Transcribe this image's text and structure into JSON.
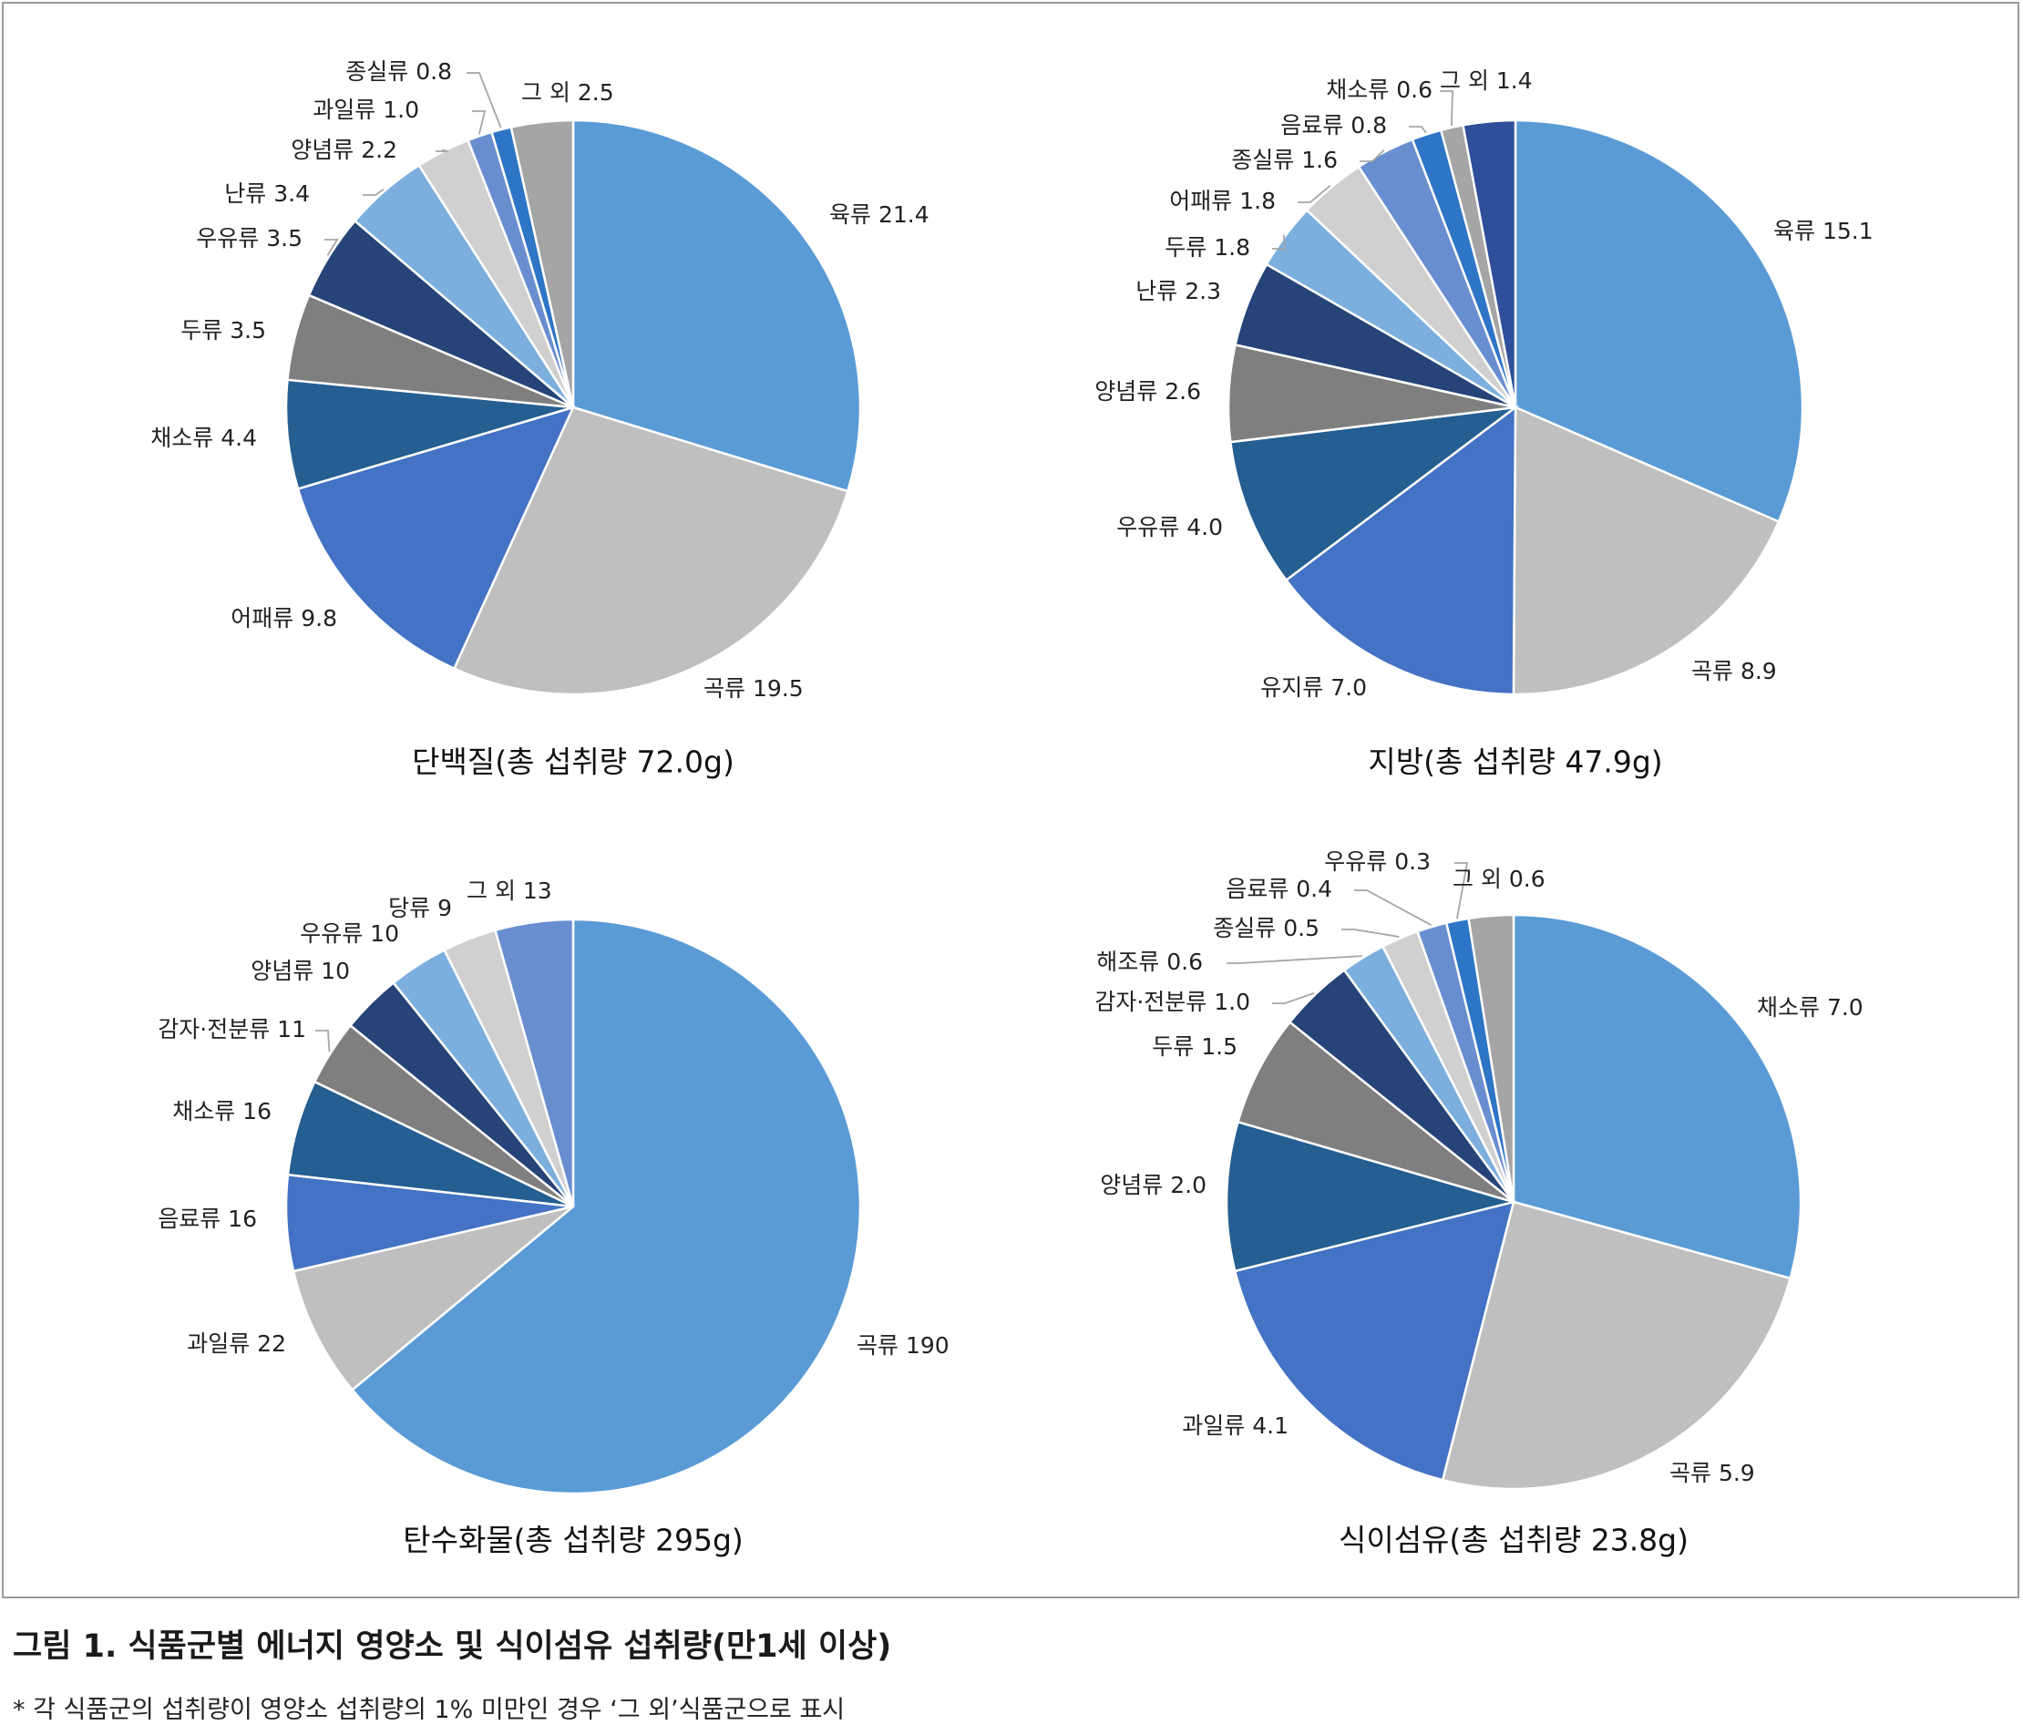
{
  "figure": {
    "caption": "그림 1. 식품군별 에너지 영양소 및 식이섬유 섭취량(만1세 이상)",
    "footnote": "* 각 식품군의 섭취량이 영양소 섭취량의 1% 미만인 경우 ‘그 외’식품군으로 표시"
  },
  "palette": [
    "#5b9bd5",
    "#bfbfbf",
    "#4472c4",
    "#255e91",
    "#7f7f7f",
    "#264478",
    "#7cafdd",
    "#d0d0d0",
    "#698ed0",
    "#2e75c6",
    "#a5a5a5",
    "#2f4f9a"
  ],
  "chart_data": [
    {
      "type": "pie",
      "title": "단백질(총 섭취량 72.0g)",
      "total": 72.0,
      "slices": [
        {
          "name": "육류",
          "value": 21.4,
          "label": "육류 21.4",
          "color": "#5b9bd5"
        },
        {
          "name": "곡류",
          "value": 19.5,
          "label": "곡류 19.5",
          "color": "#bfbfbf"
        },
        {
          "name": "어패류",
          "value": 9.8,
          "label": "어패류 9.8",
          "color": "#4472c4"
        },
        {
          "name": "채소류",
          "value": 4.4,
          "label": "채소류 4.4",
          "color": "#255e91"
        },
        {
          "name": "두류",
          "value": 3.5,
          "label": "두류 3.5",
          "color": "#7f7f7f"
        },
        {
          "name": "우유류",
          "value": 3.5,
          "label": "우유류 3.5",
          "color": "#264478"
        },
        {
          "name": "난류",
          "value": 3.4,
          "label": "난류 3.4",
          "color": "#7cafdd"
        },
        {
          "name": "양념류",
          "value": 2.2,
          "label": "양념류 2.2",
          "color": "#d0d0d0"
        },
        {
          "name": "과일류",
          "value": 1.0,
          "label": "과일류 1.0",
          "color": "#698ed0"
        },
        {
          "name": "종실류",
          "value": 0.8,
          "label": "종실류 0.8",
          "color": "#2e75c6"
        },
        {
          "name": "그 외",
          "value": 2.5,
          "label": "그 외 2.5",
          "color": "#a5a5a5"
        }
      ]
    },
    {
      "type": "pie",
      "title": "지방(총 섭취량 47.9g)",
      "total": 47.9,
      "slices": [
        {
          "name": "육류",
          "value": 15.1,
          "label": "육류 15.1",
          "color": "#5b9bd5"
        },
        {
          "name": "곡류",
          "value": 8.9,
          "label": "곡류 8.9",
          "color": "#bfbfbf"
        },
        {
          "name": "유지류",
          "value": 7.0,
          "label": "유지류 7.0",
          "color": "#4472c4"
        },
        {
          "name": "우유류",
          "value": 4.0,
          "label": "우유류 4.0",
          "color": "#255e91"
        },
        {
          "name": "양념류",
          "value": 2.6,
          "label": "양념류 2.6",
          "color": "#7f7f7f"
        },
        {
          "name": "난류",
          "value": 2.3,
          "label": "난류 2.3",
          "color": "#264478"
        },
        {
          "name": "두류",
          "value": 1.8,
          "label": "두류 1.8",
          "color": "#7cafdd"
        },
        {
          "name": "어패류",
          "value": 1.8,
          "label": "어패류 1.8",
          "color": "#d0d0d0"
        },
        {
          "name": "종실류",
          "value": 1.6,
          "label": "종실류 1.6",
          "color": "#698ed0"
        },
        {
          "name": "음료류",
          "value": 0.8,
          "label": "음료류 0.8",
          "color": "#2e75c6"
        },
        {
          "name": "채소류",
          "value": 0.6,
          "label": "채소류 0.6",
          "color": "#a5a5a5"
        },
        {
          "name": "그 외",
          "value": 1.4,
          "label": "그 외 1.4",
          "color": "#2f4f9a"
        }
      ]
    },
    {
      "type": "pie",
      "title": "탄수화물(총 섭취량 295g)",
      "total": 295,
      "slices": [
        {
          "name": "곡류",
          "value": 190,
          "label": "곡류 190",
          "color": "#5b9bd5"
        },
        {
          "name": "과일류",
          "value": 22,
          "label": "과일류 22",
          "color": "#bfbfbf"
        },
        {
          "name": "음료류",
          "value": 16,
          "label": "음료류 16",
          "color": "#4472c4"
        },
        {
          "name": "채소류",
          "value": 16,
          "label": "채소류 16",
          "color": "#255e91"
        },
        {
          "name": "감자·전분류",
          "value": 11,
          "label": "감자·전분류 11",
          "color": "#7f7f7f"
        },
        {
          "name": "양념류",
          "value": 10,
          "label": "양념류 10",
          "color": "#264478"
        },
        {
          "name": "우유류",
          "value": 10,
          "label": "우유류 10",
          "color": "#7cafdd"
        },
        {
          "name": "당류",
          "value": 9,
          "label": "당류 9",
          "color": "#d0d0d0"
        },
        {
          "name": "그 외",
          "value": 13,
          "label": "그 외 13",
          "color": "#698ed0"
        }
      ]
    },
    {
      "type": "pie",
      "title": "식이섬유(총 섭취량 23.8g)",
      "total": 23.8,
      "slices": [
        {
          "name": "채소류",
          "value": 7.0,
          "label": "채소류 7.0",
          "color": "#5b9bd5"
        },
        {
          "name": "곡류",
          "value": 5.9,
          "label": "곡류 5.9",
          "color": "#bfbfbf"
        },
        {
          "name": "과일류",
          "value": 4.1,
          "label": "과일류 4.1",
          "color": "#4472c4"
        },
        {
          "name": "양념류",
          "value": 2.0,
          "label": "양념류 2.0",
          "color": "#255e91"
        },
        {
          "name": "두류",
          "value": 1.5,
          "label": "두류 1.5",
          "color": "#7f7f7f"
        },
        {
          "name": "감자·전분류",
          "value": 1.0,
          "label": "감자·전분류 1.0",
          "color": "#264478"
        },
        {
          "name": "해조류",
          "value": 0.6,
          "label": "해조류 0.6",
          "color": "#7cafdd"
        },
        {
          "name": "종실류",
          "value": 0.5,
          "label": "종실류 0.5",
          "color": "#d0d0d0"
        },
        {
          "name": "음료류",
          "value": 0.4,
          "label": "음료류 0.4",
          "color": "#698ed0"
        },
        {
          "name": "우유류",
          "value": 0.3,
          "label": "우유류 0.3",
          "color": "#2e75c6"
        },
        {
          "name": "그 외",
          "value": 0.6,
          "label": "그 외 0.6",
          "color": "#a5a5a5"
        }
      ]
    }
  ]
}
